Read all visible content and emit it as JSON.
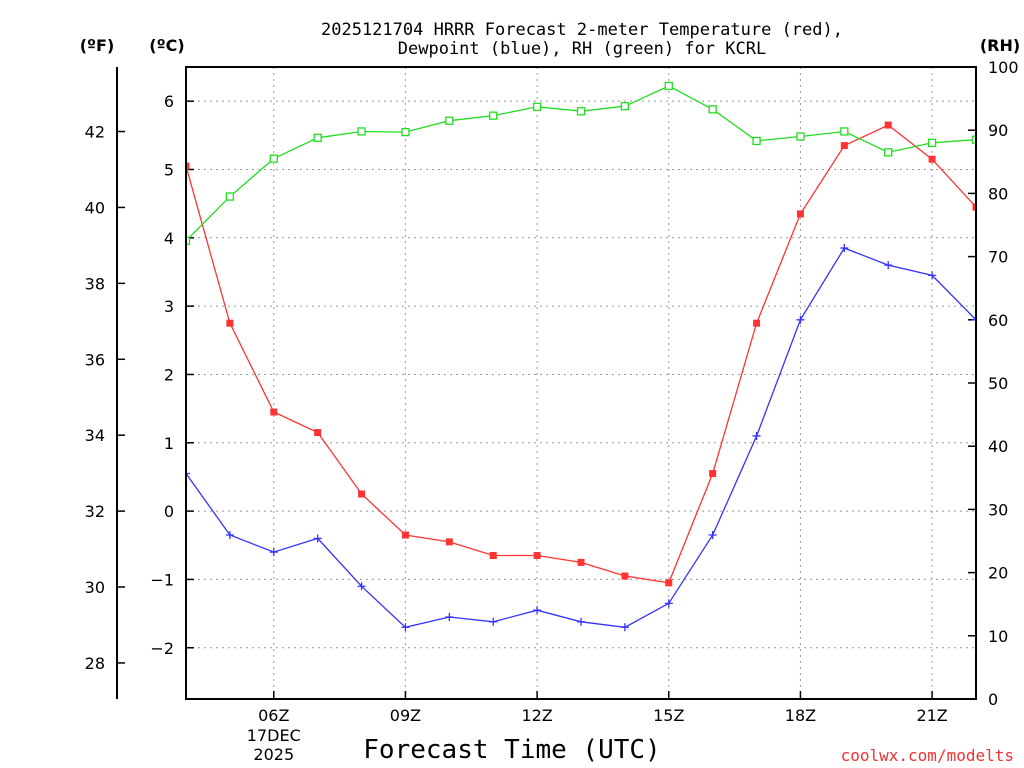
{
  "chart_data": {
    "type": "line",
    "title_line1": "2025121704 HRRR Forecast 2-meter Temperature (red),",
    "title_line2": "Dewpoint (blue), RH (green) for KCRL",
    "xlabel": "Forecast Time (UTC)",
    "credit": "coolwx.com/modelts",
    "units": {
      "fahrenheit": "(ºF)",
      "celsius": "(ºC)",
      "rh": "(RH)"
    },
    "x_start_hour": 4,
    "x_range_hours": [
      4,
      22
    ],
    "x_ticks": [
      {
        "hour": 6,
        "label": "06Z"
      },
      {
        "hour": 9,
        "label": "09Z"
      },
      {
        "hour": 12,
        "label": "12Z"
      },
      {
        "hour": 15,
        "label": "15Z"
      },
      {
        "hour": 18,
        "label": "18Z"
      },
      {
        "hour": 21,
        "label": "21Z"
      }
    ],
    "date_label": {
      "hour": 6,
      "line1": "17DEC",
      "line2": "2025"
    },
    "celsius_range": [
      -2.75,
      6.5
    ],
    "celsius_ticks": [
      "-2",
      "-1",
      "0",
      "1",
      "2",
      "3",
      "4",
      "5",
      "6"
    ],
    "fahrenheit_ticks": [
      "28",
      "30",
      "32",
      "34",
      "36",
      "38",
      "40",
      "42"
    ],
    "rh_range": [
      0,
      100
    ],
    "rh_ticks": [
      "0",
      "10",
      "20",
      "30",
      "40",
      "50",
      "60",
      "70",
      "80",
      "90",
      "100"
    ],
    "grid": true,
    "series": [
      {
        "name": "Temperature",
        "axis": "celsius",
        "color": "#ff3333",
        "marker": "filled-square",
        "values": [
          5.05,
          2.75,
          1.45,
          1.15,
          0.25,
          -0.35,
          -0.45,
          -0.65,
          -0.65,
          -0.75,
          -0.95,
          -1.05,
          0.55,
          2.75,
          4.35,
          5.35,
          5.65,
          5.15,
          4.45
        ]
      },
      {
        "name": "Dewpoint",
        "axis": "celsius",
        "color": "#3333ff",
        "marker": "plus",
        "values": [
          0.55,
          -0.35,
          -0.6,
          -0.4,
          -1.1,
          -1.7,
          -1.55,
          -1.62,
          -1.45,
          -1.62,
          -1.7,
          -1.35,
          -0.35,
          1.1,
          2.8,
          3.85,
          3.6,
          3.45,
          2.8
        ]
      },
      {
        "name": "RH",
        "axis": "rh",
        "color": "#22dd22",
        "marker": "open-square",
        "values": [
          72.5,
          79.5,
          85.5,
          88.8,
          89.8,
          89.7,
          91.5,
          92.3,
          93.7,
          93.0,
          93.8,
          97.0,
          93.3,
          88.3,
          89.0,
          89.8,
          86.5,
          88.0,
          88.5
        ]
      }
    ]
  }
}
